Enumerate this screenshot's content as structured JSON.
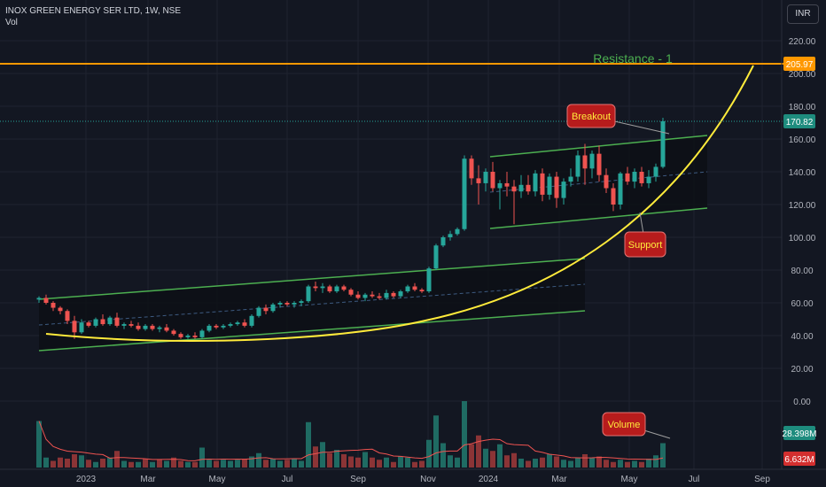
{
  "header": {
    "symbol": "INOX GREEN ENERGY SER LTD, 1W, NSE",
    "indicator": "Vol"
  },
  "currency_button": "INR",
  "colors": {
    "background": "#131722",
    "up": "#26a69a",
    "down": "#ef5350",
    "channel": "#4caf50",
    "curve": "#ffeb3b",
    "resistance": "#ff9800",
    "callout_bg": "#b71c1c",
    "callout_text": "#ffeb3b",
    "last_price_bg": "#26a69a",
    "volume_ma": "#ef5350"
  },
  "chart_data": {
    "type": "candlestick",
    "price_axis": {
      "ticks": [
        "220.00",
        "200.00",
        "180.00",
        "160.00",
        "140.00",
        "120.00",
        "100.00",
        "80.00",
        "60.00",
        "40.00",
        "20.00",
        "0.00"
      ],
      "min": -25,
      "max": 228
    },
    "time_axis": {
      "ticks": [
        "2023",
        "Mar",
        "May",
        "Jul",
        "Sep",
        "Nov",
        "2024",
        "Mar",
        "May",
        "Jul",
        "Sep"
      ]
    },
    "price_labels": {
      "resistance": "205.97",
      "last_price": "170.82",
      "volume_current": "28.398M",
      "volume_ma": "6.632M"
    },
    "resistance_level": 205.97,
    "annotations": [
      "Resistance - 1",
      "Breakout",
      "Support",
      "Volume"
    ],
    "candles": [
      {
        "o": 62,
        "h": 64,
        "l": 60,
        "c": 63
      },
      {
        "o": 63,
        "h": 65,
        "l": 59,
        "c": 60
      },
      {
        "o": 60,
        "h": 61,
        "l": 55,
        "c": 57
      },
      {
        "o": 57,
        "h": 58,
        "l": 53,
        "c": 55
      },
      {
        "o": 55,
        "h": 56,
        "l": 47,
        "c": 49
      },
      {
        "o": 49,
        "h": 52,
        "l": 38,
        "c": 42
      },
      {
        "o": 42,
        "h": 50,
        "l": 41,
        "c": 48
      },
      {
        "o": 48,
        "h": 49,
        "l": 45,
        "c": 46
      },
      {
        "o": 46,
        "h": 51,
        "l": 45,
        "c": 50
      },
      {
        "o": 50,
        "h": 53,
        "l": 46,
        "c": 47
      },
      {
        "o": 47,
        "h": 52,
        "l": 46,
        "c": 51
      },
      {
        "o": 51,
        "h": 54,
        "l": 45,
        "c": 46
      },
      {
        "o": 46,
        "h": 48,
        "l": 44,
        "c": 47
      },
      {
        "o": 47,
        "h": 49,
        "l": 45,
        "c": 46
      },
      {
        "o": 46,
        "h": 48,
        "l": 43,
        "c": 44
      },
      {
        "o": 44,
        "h": 47,
        "l": 43,
        "c": 46
      },
      {
        "o": 46,
        "h": 47,
        "l": 43,
        "c": 44
      },
      {
        "o": 44,
        "h": 46,
        "l": 42,
        "c": 45
      },
      {
        "o": 45,
        "h": 47,
        "l": 42,
        "c": 43
      },
      {
        "o": 43,
        "h": 44,
        "l": 40,
        "c": 41
      },
      {
        "o": 41,
        "h": 42,
        "l": 38,
        "c": 39
      },
      {
        "o": 39,
        "h": 41,
        "l": 38,
        "c": 40
      },
      {
        "o": 40,
        "h": 42,
        "l": 38,
        "c": 39
      },
      {
        "o": 39,
        "h": 44,
        "l": 38,
        "c": 43
      },
      {
        "o": 43,
        "h": 47,
        "l": 42,
        "c": 46
      },
      {
        "o": 46,
        "h": 47,
        "l": 44,
        "c": 45
      },
      {
        "o": 45,
        "h": 47,
        "l": 44,
        "c": 46
      },
      {
        "o": 46,
        "h": 48,
        "l": 45,
        "c": 47
      },
      {
        "o": 47,
        "h": 49,
        "l": 46,
        "c": 48
      },
      {
        "o": 48,
        "h": 50,
        "l": 45,
        "c": 46
      },
      {
        "o": 46,
        "h": 53,
        "l": 45,
        "c": 52
      },
      {
        "o": 52,
        "h": 58,
        "l": 51,
        "c": 57
      },
      {
        "o": 57,
        "h": 59,
        "l": 53,
        "c": 55
      },
      {
        "o": 55,
        "h": 60,
        "l": 54,
        "c": 59
      },
      {
        "o": 59,
        "h": 61,
        "l": 57,
        "c": 60
      },
      {
        "o": 60,
        "h": 61,
        "l": 58,
        "c": 59
      },
      {
        "o": 59,
        "h": 61,
        "l": 57,
        "c": 60
      },
      {
        "o": 60,
        "h": 62,
        "l": 58,
        "c": 61
      },
      {
        "o": 61,
        "h": 71,
        "l": 60,
        "c": 70
      },
      {
        "o": 70,
        "h": 73,
        "l": 67,
        "c": 69
      },
      {
        "o": 69,
        "h": 72,
        "l": 66,
        "c": 70
      },
      {
        "o": 70,
        "h": 71,
        "l": 66,
        "c": 67
      },
      {
        "o": 67,
        "h": 71,
        "l": 66,
        "c": 70
      },
      {
        "o": 70,
        "h": 71,
        "l": 67,
        "c": 68
      },
      {
        "o": 68,
        "h": 69,
        "l": 64,
        "c": 65
      },
      {
        "o": 65,
        "h": 67,
        "l": 62,
        "c": 63
      },
      {
        "o": 63,
        "h": 66,
        "l": 61,
        "c": 65
      },
      {
        "o": 65,
        "h": 67,
        "l": 63,
        "c": 64
      },
      {
        "o": 64,
        "h": 66,
        "l": 62,
        "c": 63
      },
      {
        "o": 63,
        "h": 68,
        "l": 62,
        "c": 66
      },
      {
        "o": 66,
        "h": 67,
        "l": 63,
        "c": 64
      },
      {
        "o": 64,
        "h": 68,
        "l": 63,
        "c": 67
      },
      {
        "o": 67,
        "h": 71,
        "l": 66,
        "c": 70
      },
      {
        "o": 70,
        "h": 72,
        "l": 67,
        "c": 68
      },
      {
        "o": 68,
        "h": 69,
        "l": 66,
        "c": 67
      },
      {
        "o": 67,
        "h": 82,
        "l": 66,
        "c": 81
      },
      {
        "o": 81,
        "h": 96,
        "l": 80,
        "c": 95
      },
      {
        "o": 95,
        "h": 101,
        "l": 94,
        "c": 100
      },
      {
        "o": 100,
        "h": 104,
        "l": 98,
        "c": 102
      },
      {
        "o": 102,
        "h": 106,
        "l": 101,
        "c": 105
      },
      {
        "o": 105,
        "h": 150,
        "l": 104,
        "c": 148
      },
      {
        "o": 148,
        "h": 150,
        "l": 132,
        "c": 136
      },
      {
        "o": 136,
        "h": 144,
        "l": 120,
        "c": 133
      },
      {
        "o": 133,
        "h": 142,
        "l": 128,
        "c": 140
      },
      {
        "o": 140,
        "h": 146,
        "l": 128,
        "c": 130
      },
      {
        "o": 130,
        "h": 135,
        "l": 117,
        "c": 133
      },
      {
        "o": 133,
        "h": 140,
        "l": 125,
        "c": 131
      },
      {
        "o": 131,
        "h": 135,
        "l": 108,
        "c": 128
      },
      {
        "o": 128,
        "h": 138,
        "l": 124,
        "c": 132
      },
      {
        "o": 132,
        "h": 138,
        "l": 126,
        "c": 128
      },
      {
        "o": 128,
        "h": 141,
        "l": 125,
        "c": 139
      },
      {
        "o": 139,
        "h": 142,
        "l": 122,
        "c": 126
      },
      {
        "o": 126,
        "h": 139,
        "l": 123,
        "c": 137
      },
      {
        "o": 137,
        "h": 140,
        "l": 118,
        "c": 124
      },
      {
        "o": 124,
        "h": 136,
        "l": 120,
        "c": 134
      },
      {
        "o": 134,
        "h": 142,
        "l": 131,
        "c": 137
      },
      {
        "o": 137,
        "h": 153,
        "l": 134,
        "c": 150
      },
      {
        "o": 150,
        "h": 157,
        "l": 132,
        "c": 142
      },
      {
        "o": 142,
        "h": 153,
        "l": 136,
        "c": 151
      },
      {
        "o": 151,
        "h": 156,
        "l": 134,
        "c": 138
      },
      {
        "o": 138,
        "h": 142,
        "l": 127,
        "c": 130
      },
      {
        "o": 130,
        "h": 133,
        "l": 116,
        "c": 120
      },
      {
        "o": 120,
        "h": 140,
        "l": 117,
        "c": 139
      },
      {
        "o": 139,
        "h": 143,
        "l": 132,
        "c": 134
      },
      {
        "o": 134,
        "h": 142,
        "l": 130,
        "c": 140
      },
      {
        "o": 140,
        "h": 143,
        "l": 131,
        "c": 133
      },
      {
        "o": 133,
        "h": 141,
        "l": 130,
        "c": 137
      },
      {
        "o": 137,
        "h": 145,
        "l": 134,
        "c": 143
      },
      {
        "o": 143,
        "h": 173,
        "l": 142,
        "c": 170.82
      }
    ],
    "volume_bars": [
      [
        0.42,
        1
      ],
      [
        0.09,
        1
      ],
      [
        0.06,
        0
      ],
      [
        0.09,
        0
      ],
      [
        0.08,
        0
      ],
      [
        0.12,
        0
      ],
      [
        0.11,
        1
      ],
      [
        0.07,
        0
      ],
      [
        0.05,
        1
      ],
      [
        0.08,
        0
      ],
      [
        0.09,
        1
      ],
      [
        0.15,
        0
      ],
      [
        0.06,
        1
      ],
      [
        0.05,
        0
      ],
      [
        0.05,
        1
      ],
      [
        0.08,
        0
      ],
      [
        0.05,
        1
      ],
      [
        0.07,
        0
      ],
      [
        0.06,
        1
      ],
      [
        0.09,
        0
      ],
      [
        0.06,
        0
      ],
      [
        0.05,
        1
      ],
      [
        0.05,
        0
      ],
      [
        0.18,
        1
      ],
      [
        0.07,
        1
      ],
      [
        0.06,
        0
      ],
      [
        0.07,
        1
      ],
      [
        0.06,
        1
      ],
      [
        0.07,
        1
      ],
      [
        0.08,
        0
      ],
      [
        0.1,
        1
      ],
      [
        0.13,
        1
      ],
      [
        0.07,
        0
      ],
      [
        0.08,
        1
      ],
      [
        0.06,
        1
      ],
      [
        0.07,
        0
      ],
      [
        0.08,
        1
      ],
      [
        0.06,
        1
      ],
      [
        0.41,
        1
      ],
      [
        0.19,
        0
      ],
      [
        0.23,
        1
      ],
      [
        0.13,
        0
      ],
      [
        0.16,
        1
      ],
      [
        0.12,
        0
      ],
      [
        0.1,
        0
      ],
      [
        0.09,
        0
      ],
      [
        0.14,
        1
      ],
      [
        0.09,
        0
      ],
      [
        0.07,
        0
      ],
      [
        0.09,
        1
      ],
      [
        0.05,
        0
      ],
      [
        0.1,
        1
      ],
      [
        0.09,
        1
      ],
      [
        0.05,
        0
      ],
      [
        0.06,
        0
      ],
      [
        0.25,
        1
      ],
      [
        0.47,
        1
      ],
      [
        0.22,
        1
      ],
      [
        0.11,
        1
      ],
      [
        0.09,
        1
      ],
      [
        0.6,
        1
      ],
      [
        0.21,
        0
      ],
      [
        0.29,
        0
      ],
      [
        0.17,
        1
      ],
      [
        0.15,
        0
      ],
      [
        0.21,
        1
      ],
      [
        0.11,
        0
      ],
      [
        0.13,
        0
      ],
      [
        0.08,
        1
      ],
      [
        0.06,
        0
      ],
      [
        0.08,
        1
      ],
      [
        0.09,
        0
      ],
      [
        0.12,
        1
      ],
      [
        0.1,
        0
      ],
      [
        0.07,
        1
      ],
      [
        0.06,
        1
      ],
      [
        0.09,
        1
      ],
      [
        0.12,
        0
      ],
      [
        0.09,
        1
      ],
      [
        0.1,
        0
      ],
      [
        0.07,
        0
      ],
      [
        0.05,
        0
      ],
      [
        0.07,
        1
      ],
      [
        0.05,
        0
      ],
      [
        0.06,
        1
      ],
      [
        0.05,
        0
      ],
      [
        0.08,
        1
      ],
      [
        0.11,
        1
      ],
      [
        0.22,
        1
      ]
    ]
  }
}
